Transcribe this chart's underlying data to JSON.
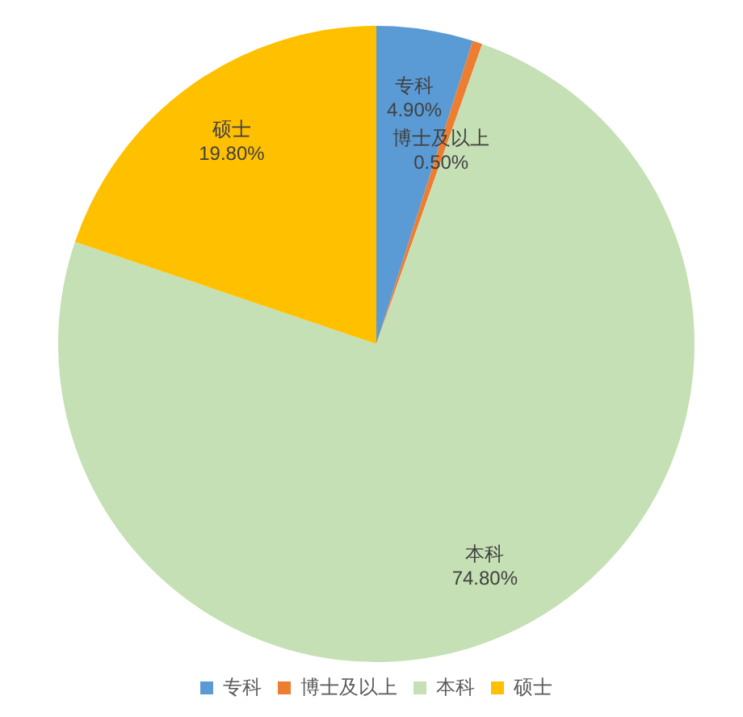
{
  "chart_data": {
    "type": "pie",
    "categories": [
      "专科",
      "博士及以上",
      "本科",
      "硕士"
    ],
    "values": [
      4.9,
      0.5,
      74.8,
      19.8
    ],
    "colors": [
      "#5b9bd5",
      "#ed7d31",
      "#c5e0b4",
      "#ffc000"
    ],
    "value_labels": [
      "4.90%",
      "0.50%",
      "74.80%",
      "19.80%"
    ],
    "legend": "bottom"
  }
}
